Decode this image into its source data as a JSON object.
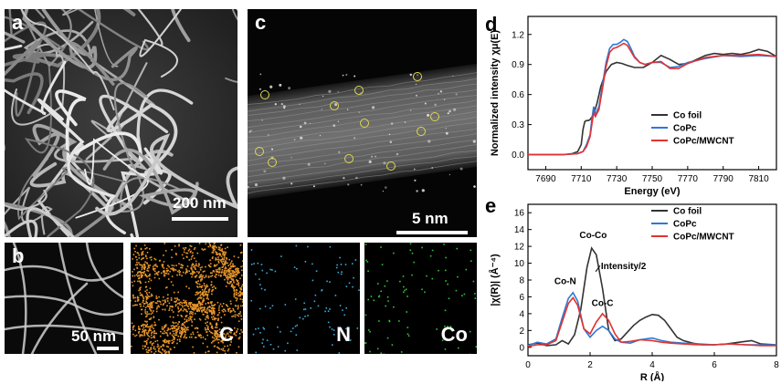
{
  "panels": {
    "a": {
      "label": "a",
      "scale_text": "200 nm"
    },
    "b": {
      "label": "b",
      "scale_text": "50 nm"
    },
    "map_c": {
      "label": "C",
      "color": "#e8962a"
    },
    "map_n": {
      "label": "N",
      "color": "#3aa9d6"
    },
    "map_co": {
      "label": "Co",
      "color": "#33c43a"
    },
    "c": {
      "label": "c",
      "scale_text": "5 nm"
    },
    "d": {
      "label": "d"
    },
    "e": {
      "label": "e"
    }
  },
  "colors": {
    "co_foil": "#333333",
    "copc": "#2f78d4",
    "copc_mwcnt": "#e23232",
    "circle": "#e0d850"
  },
  "chart_data": [
    {
      "type": "line",
      "panel": "d",
      "xlabel": "Energy (eV)",
      "ylabel": "Normalized intensity χμ(E)",
      "xlim": [
        7680,
        7820
      ],
      "ylim": [
        -0.15,
        1.38
      ],
      "xticks": [
        7690,
        7710,
        7730,
        7750,
        7770,
        7790,
        7810
      ],
      "yticks": [
        0.0,
        0.3,
        0.6,
        0.9,
        1.2
      ],
      "ytick_labels": [
        "0.0",
        "0.3",
        "0.6",
        "0.9",
        "1.2"
      ],
      "legend": "bottom-right",
      "series": [
        {
          "name": "Co foil",
          "x": [
            7680,
            7700,
            7705,
            7708,
            7710,
            7711,
            7712,
            7713,
            7714,
            7715,
            7717,
            7719,
            7721,
            7724,
            7727,
            7730,
            7733,
            7736,
            7740,
            7745,
            7750,
            7755,
            7760,
            7765,
            7770,
            7775,
            7780,
            7785,
            7790,
            7795,
            7800,
            7805,
            7810,
            7815,
            7820
          ],
          "y": [
            0,
            0,
            0.01,
            0.03,
            0.1,
            0.25,
            0.33,
            0.34,
            0.34,
            0.35,
            0.4,
            0.52,
            0.68,
            0.83,
            0.9,
            0.92,
            0.91,
            0.89,
            0.87,
            0.87,
            0.92,
            0.99,
            0.95,
            0.9,
            0.91,
            0.95,
            0.99,
            1.01,
            1.0,
            1.01,
            1.0,
            1.02,
            1.05,
            1.03,
            0.98
          ]
        },
        {
          "name": "CoPc",
          "x": [
            7680,
            7700,
            7708,
            7711,
            7713,
            7715,
            7716,
            7717,
            7718,
            7720,
            7722,
            7724,
            7726,
            7728,
            7730,
            7732,
            7734,
            7736,
            7738,
            7740,
            7743,
            7746,
            7750,
            7755,
            7760,
            7765,
            7770,
            7780,
            7790,
            7800,
            7810,
            7820
          ],
          "y": [
            0,
            0,
            0.01,
            0.03,
            0.1,
            0.2,
            0.35,
            0.48,
            0.4,
            0.48,
            0.7,
            0.92,
            1.06,
            1.1,
            1.1,
            1.12,
            1.15,
            1.13,
            1.06,
            0.98,
            0.92,
            0.9,
            0.92,
            0.92,
            0.87,
            0.88,
            0.92,
            0.96,
            0.99,
            0.98,
            0.99,
            0.98
          ]
        },
        {
          "name": "CoPc/MWCNT",
          "x": [
            7680,
            7700,
            7708,
            7711,
            7713,
            7715,
            7716,
            7717,
            7718,
            7720,
            7722,
            7724,
            7726,
            7728,
            7730,
            7732,
            7734,
            7736,
            7738,
            7740,
            7743,
            7746,
            7750,
            7755,
            7760,
            7765,
            7770,
            7780,
            7790,
            7800,
            7810,
            7820
          ],
          "y": [
            0,
            0,
            0.01,
            0.03,
            0.08,
            0.18,
            0.3,
            0.42,
            0.38,
            0.45,
            0.66,
            0.88,
            1.02,
            1.06,
            1.07,
            1.09,
            1.11,
            1.09,
            1.03,
            0.97,
            0.92,
            0.9,
            0.92,
            0.93,
            0.86,
            0.86,
            0.91,
            0.97,
            0.99,
            0.99,
            1.0,
            0.98
          ]
        }
      ]
    },
    {
      "type": "line",
      "panel": "e",
      "xlabel": "R (Å)",
      "ylabel": "|χ(R)| (Å⁻⁴)",
      "xlim": [
        0,
        8
      ],
      "ylim": [
        -1,
        17
      ],
      "xticks": [
        0,
        2,
        4,
        6,
        8
      ],
      "yticks": [
        0,
        2,
        4,
        6,
        8,
        10,
        12,
        14,
        16
      ],
      "legend": "top-right",
      "annotations": [
        "Co-Co",
        "Co-N",
        "Co-C",
        "Intensity/2"
      ],
      "series": [
        {
          "name": "Co foil",
          "x": [
            0,
            0.3,
            0.6,
            0.9,
            1.1,
            1.3,
            1.5,
            1.7,
            1.9,
            2.05,
            2.2,
            2.4,
            2.6,
            2.8,
            3.0,
            3.2,
            3.4,
            3.6,
            3.8,
            4.0,
            4.2,
            4.4,
            4.6,
            4.8,
            5.0,
            5.3,
            5.6,
            6.0,
            6.4,
            6.8,
            7.2,
            7.5,
            8.0
          ],
          "y": [
            0.3,
            0.5,
            0.2,
            0.3,
            0.8,
            0.4,
            1.5,
            4.5,
            9.5,
            11.8,
            11.0,
            7.0,
            2.0,
            0.8,
            1.0,
            1.8,
            2.6,
            3.2,
            3.6,
            3.9,
            3.8,
            3.2,
            2.2,
            1.2,
            0.8,
            0.5,
            0.3,
            0.3,
            0.4,
            0.6,
            0.8,
            0.4,
            0.3
          ]
        },
        {
          "name": "CoPc",
          "x": [
            0,
            0.3,
            0.6,
            0.9,
            1.1,
            1.3,
            1.45,
            1.6,
            1.8,
            2.0,
            2.2,
            2.4,
            2.6,
            2.8,
            3.0,
            3.3,
            3.6,
            4.0,
            4.3,
            4.6,
            5.0,
            5.5,
            6.0,
            6.5,
            7.0,
            7.5,
            8.0
          ],
          "y": [
            0.2,
            0.6,
            0.4,
            1.0,
            3.5,
            5.8,
            6.5,
            5.5,
            2.2,
            1.2,
            2.0,
            2.5,
            2.0,
            1.0,
            0.6,
            0.5,
            0.9,
            1.1,
            0.8,
            0.6,
            0.5,
            0.4,
            0.3,
            0.4,
            0.3,
            0.3,
            0.3
          ]
        },
        {
          "name": "CoPc/MWCNT",
          "x": [
            0,
            0.3,
            0.6,
            0.9,
            1.1,
            1.3,
            1.45,
            1.6,
            1.8,
            2.0,
            2.2,
            2.4,
            2.6,
            2.8,
            3.0,
            3.3,
            3.6,
            4.0,
            4.3,
            4.6,
            5.0,
            5.5,
            6.0,
            6.5,
            7.0,
            7.5,
            8.0
          ],
          "y": [
            0.1,
            0.3,
            0.3,
            0.8,
            3.0,
            5.2,
            5.9,
            5.0,
            2.2,
            1.6,
            3.0,
            4.0,
            3.2,
            1.6,
            0.6,
            0.7,
            0.9,
            0.8,
            0.6,
            0.5,
            0.4,
            0.3,
            0.3,
            0.4,
            0.3,
            0.2,
            0.2
          ]
        }
      ]
    }
  ]
}
